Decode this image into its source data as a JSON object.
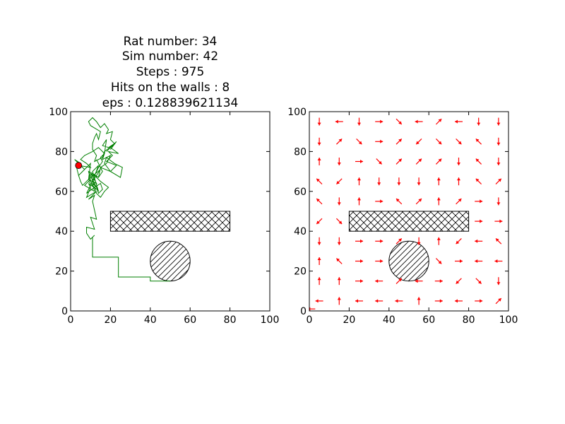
{
  "figure": {
    "background": "#ffffff"
  },
  "chart_data": [
    {
      "type": "line",
      "title_lines": [
        "Rat number: 34",
        "Sim number: 42",
        "Steps : 975",
        "Hits on the walls : 8",
        "eps : 0.128839621134"
      ],
      "xlabel": "",
      "ylabel": "",
      "xlim": [
        0,
        100
      ],
      "ylim": [
        0,
        100
      ],
      "xticks": [
        0,
        20,
        40,
        60,
        80,
        100
      ],
      "yticks": [
        0,
        20,
        40,
        60,
        80,
        100
      ],
      "grid": false,
      "obstacles": [
        {
          "shape": "rect",
          "x": [
            20,
            80
          ],
          "y": [
            40,
            50
          ],
          "hatch": "crosshatch"
        },
        {
          "shape": "circle",
          "center": [
            50,
            25
          ],
          "radius": 10,
          "hatch": "diagonal"
        }
      ],
      "series": [
        {
          "style": "path",
          "color": "#007f00",
          "x": [
            50,
            40,
            40,
            24,
            24,
            11,
            11,
            12,
            10,
            8,
            8,
            12,
            10,
            13,
            11,
            12,
            9,
            13,
            8,
            10,
            9,
            13,
            9,
            12,
            8,
            12,
            10,
            13,
            9,
            12,
            10,
            14,
            11,
            14,
            11,
            15,
            9,
            10,
            6,
            4,
            3,
            5,
            2,
            7,
            4,
            5,
            6,
            9,
            10,
            14,
            15,
            20,
            17,
            18,
            22,
            26,
            25,
            20,
            23,
            18,
            21,
            19,
            24,
            20,
            18,
            22,
            20,
            23,
            21,
            17,
            16,
            12,
            13,
            11,
            11,
            12,
            13,
            14,
            15,
            10,
            9,
            11,
            13,
            15,
            17,
            19,
            18,
            21,
            20,
            22,
            19,
            16,
            18,
            17,
            16,
            20,
            18,
            15,
            13,
            16,
            14,
            11,
            9,
            10,
            7,
            12,
            11,
            13,
            14,
            16,
            15,
            12,
            13,
            15,
            17,
            19,
            15,
            12,
            14,
            16,
            15,
            17,
            14,
            11,
            7,
            5,
            8,
            10,
            4
          ],
          "y": [
            15,
            15,
            17,
            17,
            27,
            27,
            37,
            38,
            36,
            39,
            42,
            41,
            47,
            46,
            55,
            58,
            56,
            60,
            57,
            62,
            64,
            61,
            65,
            62,
            59,
            67,
            69,
            64,
            66,
            63,
            68,
            60,
            70,
            73,
            65,
            71,
            66,
            74,
            70,
            68,
            72,
            74,
            76,
            71,
            68,
            65,
            63,
            66,
            69,
            67,
            72,
            70,
            74,
            77,
            74,
            72,
            67,
            70,
            73,
            75,
            78,
            80,
            79,
            82,
            80,
            84,
            81,
            85,
            83,
            80,
            77,
            75,
            78,
            81,
            84,
            87,
            89,
            86,
            90,
            93,
            95,
            97,
            95,
            92,
            94,
            91,
            89,
            90,
            86,
            84,
            82,
            83,
            86,
            79,
            76,
            78,
            74,
            72,
            76,
            70,
            67,
            69,
            70,
            66,
            63,
            60,
            64,
            62,
            59,
            61,
            64,
            62,
            59,
            57,
            60,
            62,
            65,
            68,
            72,
            75,
            77,
            79,
            82,
            80,
            78,
            76,
            74,
            72,
            73
          ]
        },
        {
          "style": "point",
          "name": "",
          "color": "#ff0000",
          "x": [
            4
          ],
          "y": [
            73
          ]
        }
      ]
    },
    {
      "type": "quiver",
      "title_lines": [],
      "xlabel": "",
      "ylabel": "",
      "xlim": [
        0,
        100
      ],
      "ylim": [
        0,
        100
      ],
      "xticks": [
        0,
        20,
        40,
        60,
        80,
        100
      ],
      "yticks": [
        0,
        20,
        40,
        60,
        80,
        100
      ],
      "grid": false,
      "arrow_color": "#ff0000",
      "obstacles": [
        {
          "shape": "rect",
          "x": [
            20,
            80
          ],
          "y": [
            40,
            50
          ],
          "hatch": "crosshatch"
        },
        {
          "shape": "circle",
          "center": [
            50,
            25
          ],
          "radius": 10,
          "hatch": "diagonal"
        }
      ],
      "vectors": [
        {
          "x": 5,
          "y": 95,
          "dir": "S"
        },
        {
          "x": 5,
          "y": 85,
          "dir": "S"
        },
        {
          "x": 5,
          "y": 75,
          "dir": "N"
        },
        {
          "x": 5,
          "y": 65,
          "dir": "NW"
        },
        {
          "x": 5,
          "y": 55,
          "dir": "NW"
        },
        {
          "x": 5,
          "y": 45,
          "dir": "SW"
        },
        {
          "x": 5,
          "y": 35,
          "dir": "S"
        },
        {
          "x": 5,
          "y": 25,
          "dir": "N"
        },
        {
          "x": 5,
          "y": 15,
          "dir": "N"
        },
        {
          "x": 5,
          "y": 5,
          "dir": "W"
        },
        {
          "x": 15,
          "y": 95,
          "dir": "W"
        },
        {
          "x": 15,
          "y": 85,
          "dir": "NE"
        },
        {
          "x": 15,
          "y": 75,
          "dir": "S"
        },
        {
          "x": 15,
          "y": 65,
          "dir": "SW"
        },
        {
          "x": 15,
          "y": 55,
          "dir": "S"
        },
        {
          "x": 15,
          "y": 45,
          "dir": "SE"
        },
        {
          "x": 15,
          "y": 35,
          "dir": "S"
        },
        {
          "x": 15,
          "y": 25,
          "dir": "NW"
        },
        {
          "x": 15,
          "y": 15,
          "dir": "N"
        },
        {
          "x": 15,
          "y": 5,
          "dir": "N"
        },
        {
          "x": 25,
          "y": 95,
          "dir": "S"
        },
        {
          "x": 25,
          "y": 85,
          "dir": "SE"
        },
        {
          "x": 25,
          "y": 75,
          "dir": "E"
        },
        {
          "x": 25,
          "y": 65,
          "dir": "N"
        },
        {
          "x": 25,
          "y": 55,
          "dir": "N"
        },
        {
          "x": 25,
          "y": 35,
          "dir": "E"
        },
        {
          "x": 25,
          "y": 25,
          "dir": "E"
        },
        {
          "x": 25,
          "y": 15,
          "dir": "E"
        },
        {
          "x": 25,
          "y": 5,
          "dir": "W"
        },
        {
          "x": 35,
          "y": 95,
          "dir": "E"
        },
        {
          "x": 35,
          "y": 85,
          "dir": "E"
        },
        {
          "x": 35,
          "y": 75,
          "dir": "SE"
        },
        {
          "x": 35,
          "y": 65,
          "dir": "S"
        },
        {
          "x": 35,
          "y": 55,
          "dir": "E"
        },
        {
          "x": 35,
          "y": 35,
          "dir": "E"
        },
        {
          "x": 35,
          "y": 25,
          "dir": "E"
        },
        {
          "x": 35,
          "y": 15,
          "dir": "W"
        },
        {
          "x": 35,
          "y": 5,
          "dir": "W"
        },
        {
          "x": 45,
          "y": 95,
          "dir": "SE"
        },
        {
          "x": 45,
          "y": 85,
          "dir": "NE"
        },
        {
          "x": 45,
          "y": 75,
          "dir": "NE"
        },
        {
          "x": 45,
          "y": 65,
          "dir": "S"
        },
        {
          "x": 45,
          "y": 55,
          "dir": "NW"
        },
        {
          "x": 45,
          "y": 35,
          "dir": "NE"
        },
        {
          "x": 45,
          "y": 15,
          "dir": "NE"
        },
        {
          "x": 45,
          "y": 5,
          "dir": "W"
        },
        {
          "x": 55,
          "y": 95,
          "dir": "W"
        },
        {
          "x": 55,
          "y": 85,
          "dir": "SW"
        },
        {
          "x": 55,
          "y": 75,
          "dir": "NE"
        },
        {
          "x": 55,
          "y": 65,
          "dir": "S"
        },
        {
          "x": 55,
          "y": 55,
          "dir": "NE"
        },
        {
          "x": 55,
          "y": 35,
          "dir": "S"
        },
        {
          "x": 55,
          "y": 15,
          "dir": "W"
        },
        {
          "x": 55,
          "y": 5,
          "dir": "N"
        },
        {
          "x": 65,
          "y": 95,
          "dir": "NE"
        },
        {
          "x": 65,
          "y": 85,
          "dir": "SE"
        },
        {
          "x": 65,
          "y": 75,
          "dir": "NE"
        },
        {
          "x": 65,
          "y": 65,
          "dir": "N"
        },
        {
          "x": 65,
          "y": 55,
          "dir": "N"
        },
        {
          "x": 65,
          "y": 35,
          "dir": "N"
        },
        {
          "x": 65,
          "y": 25,
          "dir": "SE"
        },
        {
          "x": 65,
          "y": 15,
          "dir": "E"
        },
        {
          "x": 65,
          "y": 5,
          "dir": "E"
        },
        {
          "x": 75,
          "y": 95,
          "dir": "W"
        },
        {
          "x": 75,
          "y": 85,
          "dir": "SE"
        },
        {
          "x": 75,
          "y": 75,
          "dir": "S"
        },
        {
          "x": 75,
          "y": 65,
          "dir": "N"
        },
        {
          "x": 75,
          "y": 55,
          "dir": "NE"
        },
        {
          "x": 75,
          "y": 35,
          "dir": "SW"
        },
        {
          "x": 75,
          "y": 25,
          "dir": "E"
        },
        {
          "x": 75,
          "y": 15,
          "dir": "SW"
        },
        {
          "x": 75,
          "y": 5,
          "dir": "W"
        },
        {
          "x": 85,
          "y": 95,
          "dir": "S"
        },
        {
          "x": 85,
          "y": 85,
          "dir": "NW"
        },
        {
          "x": 85,
          "y": 75,
          "dir": "NW"
        },
        {
          "x": 85,
          "y": 65,
          "dir": "NW"
        },
        {
          "x": 85,
          "y": 55,
          "dir": "E"
        },
        {
          "x": 85,
          "y": 45,
          "dir": "E"
        },
        {
          "x": 85,
          "y": 35,
          "dir": "W"
        },
        {
          "x": 85,
          "y": 25,
          "dir": "W"
        },
        {
          "x": 85,
          "y": 15,
          "dir": "SE"
        },
        {
          "x": 85,
          "y": 5,
          "dir": "E"
        },
        {
          "x": 95,
          "y": 95,
          "dir": "S"
        },
        {
          "x": 95,
          "y": 85,
          "dir": "S"
        },
        {
          "x": 95,
          "y": 75,
          "dir": "S"
        },
        {
          "x": 95,
          "y": 65,
          "dir": "NE"
        },
        {
          "x": 95,
          "y": 55,
          "dir": "S"
        },
        {
          "x": 95,
          "y": 45,
          "dir": "E"
        },
        {
          "x": 95,
          "y": 35,
          "dir": "NW"
        },
        {
          "x": 95,
          "y": 25,
          "dir": "W"
        },
        {
          "x": 95,
          "y": 15,
          "dir": "S"
        },
        {
          "x": 95,
          "y": 5,
          "dir": "NE"
        },
        {
          "x": 1,
          "y": 1,
          "dir": "W"
        }
      ]
    }
  ]
}
